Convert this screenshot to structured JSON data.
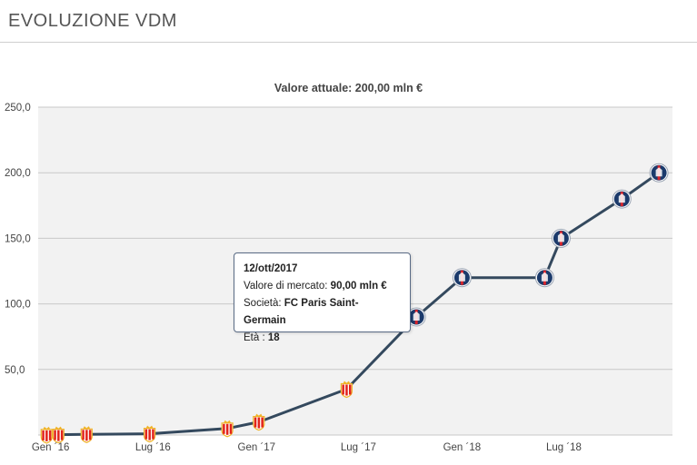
{
  "header": {
    "title": "EVOLUZIONE VDM"
  },
  "chart_data": {
    "type": "line",
    "title": "Valore attuale: 200,00 mln €",
    "y_ticks": [
      "250,0",
      "200,0",
      "150,0",
      "100,0",
      "50,0"
    ],
    "ylim": [
      0,
      250
    ],
    "grid": true,
    "x_ticks": [
      {
        "label": "Gen ´16",
        "x": "2016-01-01"
      },
      {
        "label": "Lug ´16",
        "x": "2016-07-01"
      },
      {
        "label": "Gen ´17",
        "x": "2017-01-01"
      },
      {
        "label": "Lug ´17",
        "x": "2017-07-01"
      },
      {
        "label": "Gen ´18",
        "x": "2018-01-01"
      },
      {
        "label": "Lug ´18",
        "x": "2018-07-01"
      }
    ],
    "series": [
      {
        "color": "#34495e",
        "points": [
          {
            "x": "2015-12-25",
            "y": 0.1,
            "club": "AS Monaco"
          },
          {
            "x": "2016-01-15",
            "y": 0.3,
            "club": "AS Monaco"
          },
          {
            "x": "2016-03-05",
            "y": 0.5,
            "club": "AS Monaco"
          },
          {
            "x": "2016-06-25",
            "y": 1.0,
            "club": "AS Monaco"
          },
          {
            "x": "2016-11-10",
            "y": 5.0,
            "club": "AS Monaco"
          },
          {
            "x": "2017-01-05",
            "y": 10.0,
            "club": "AS Monaco"
          },
          {
            "x": "2017-06-10",
            "y": 35.0,
            "club": "AS Monaco"
          },
          {
            "x": "2017-10-12",
            "y": 90.0,
            "club": "FC Paris Saint-Germain"
          },
          {
            "x": "2018-01-01",
            "y": 120.0,
            "club": "FC Paris Saint-Germain"
          },
          {
            "x": "2018-05-28",
            "y": 120.0,
            "club": "FC Paris Saint-Germain"
          },
          {
            "x": "2018-06-26",
            "y": 150.0,
            "club": "FC Paris Saint-Germain"
          },
          {
            "x": "2018-10-12",
            "y": 180.0,
            "club": "FC Paris Saint-Germain"
          },
          {
            "x": "2018-12-17",
            "y": 200.0,
            "club": "FC Paris Saint-Germain"
          }
        ]
      }
    ]
  },
  "tooltip": {
    "date": "12/ott/2017",
    "value_label": "Valore di mercato:",
    "value": "90,00 mln €",
    "club_label": "Società:",
    "club": "FC Paris Saint-Germain",
    "age_label": "Età :",
    "age": "18"
  },
  "colors": {
    "plot_bg": "#f2f2f2",
    "line": "#34495e",
    "monaco_red": "#e2231a",
    "monaco_gold": "#f0b429",
    "psg_blue": "#1b3a6b",
    "psg_red": "#d6252c"
  }
}
